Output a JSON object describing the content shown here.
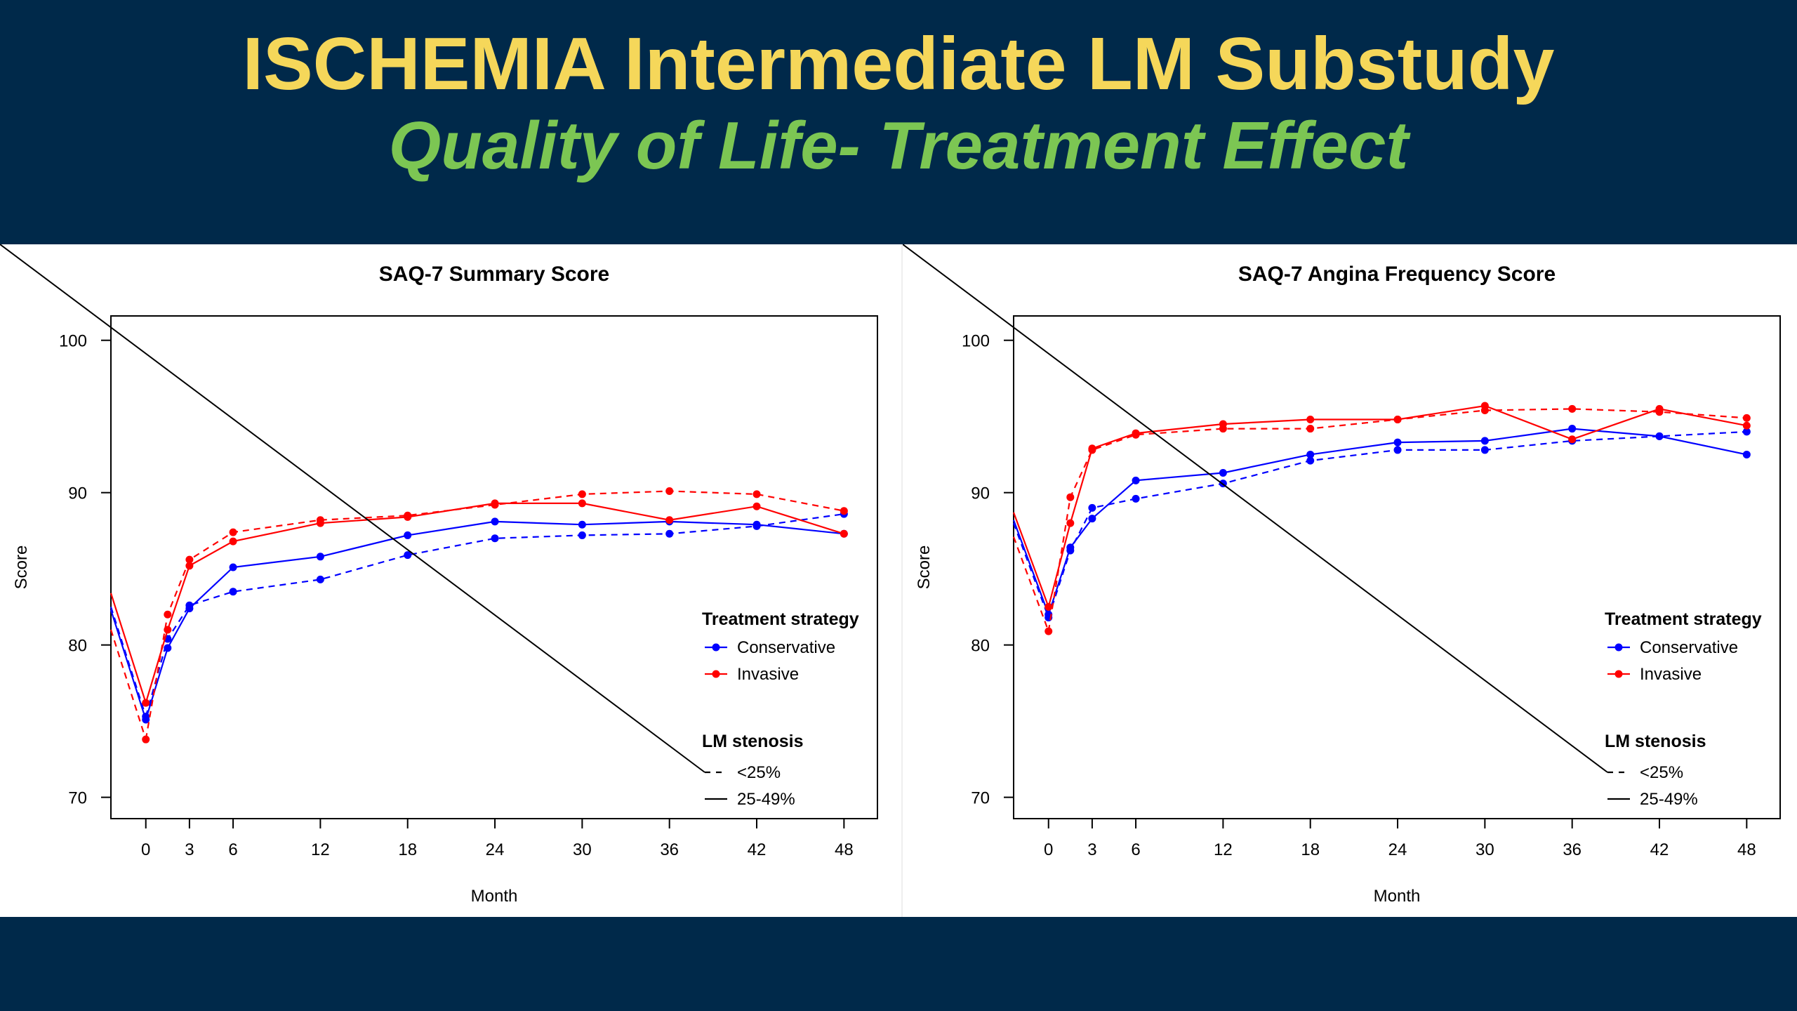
{
  "header": {
    "title": "ISCHEMIA Intermediate LM Substudy",
    "subtitle": "Quality of Life- Treatment Effect"
  },
  "colors": {
    "background": "#00294a",
    "title": "#f5d75a",
    "subtitle": "#7cc653",
    "conservative": "#0000ff",
    "invasive": "#ff0000"
  },
  "chart_data": [
    {
      "type": "line",
      "title": "SAQ-7 Summary Score",
      "xlabel": "Month",
      "ylabel": "Score",
      "xticks": [
        0,
        3,
        6,
        12,
        18,
        24,
        30,
        36,
        42,
        48
      ],
      "yticks": [
        70,
        80,
        90,
        100
      ],
      "xlim": [
        -2.4,
        50.3
      ],
      "ylim": [
        68.6,
        101.6
      ],
      "grid": false,
      "legend": {
        "position": "bottom-right",
        "strategy_title": "Treatment strategy",
        "strategy_items": [
          "Conservative",
          "Invasive"
        ],
        "stenosis_title": "LM stenosis",
        "stenosis_items": [
          "<25%",
          "25-49%"
        ]
      },
      "series": [
        {
          "group": "Conservative",
          "stenosis": "25-49%",
          "dash": false,
          "x": [
            0,
            1.5,
            3,
            6,
            12,
            18,
            24,
            30,
            36,
            42,
            48
          ],
          "y": [
            75.1,
            79.8,
            82.4,
            85.1,
            85.8,
            87.2,
            88.1,
            87.9,
            88.1,
            87.9,
            87.3
          ]
        },
        {
          "group": "Conservative",
          "stenosis": "<25%",
          "dash": true,
          "x": [
            0,
            1.5,
            3,
            6,
            12,
            18,
            24,
            30,
            36,
            42,
            48
          ],
          "y": [
            75.3,
            80.4,
            82.6,
            83.5,
            84.3,
            85.9,
            87.0,
            87.2,
            87.3,
            87.8,
            88.6
          ]
        },
        {
          "group": "Invasive",
          "stenosis": "25-49%",
          "dash": false,
          "x": [
            0,
            1.5,
            3,
            6,
            12,
            18,
            24,
            30,
            36,
            42,
            48
          ],
          "y": [
            76.2,
            81.0,
            85.2,
            86.8,
            88.0,
            88.4,
            89.3,
            89.3,
            88.2,
            89.1,
            87.3
          ]
        },
        {
          "group": "Invasive",
          "stenosis": "<25%",
          "dash": true,
          "x": [
            0,
            1.5,
            3,
            6,
            12,
            18,
            24,
            30,
            36,
            42,
            48
          ],
          "y": [
            73.8,
            82.0,
            85.6,
            87.4,
            88.2,
            88.5,
            89.2,
            89.9,
            90.1,
            89.9,
            88.8
          ]
        }
      ]
    },
    {
      "type": "line",
      "title": "SAQ-7 Angina Frequency Score",
      "xlabel": "Month",
      "ylabel": "Score",
      "xticks": [
        0,
        3,
        6,
        12,
        18,
        24,
        30,
        36,
        42,
        48
      ],
      "yticks": [
        70,
        80,
        90,
        100
      ],
      "xlim": [
        -2.4,
        50.3
      ],
      "ylim": [
        68.6,
        101.6
      ],
      "grid": false,
      "legend": {
        "position": "bottom-right",
        "strategy_title": "Treatment strategy",
        "strategy_items": [
          "Conservative",
          "Invasive"
        ],
        "stenosis_title": "LM stenosis",
        "stenosis_items": [
          "<25%",
          "25-49%"
        ]
      },
      "series": [
        {
          "group": "Conservative",
          "stenosis": "25-49%",
          "dash": false,
          "x": [
            0,
            1.5,
            3,
            6,
            12,
            18,
            24,
            30,
            36,
            42,
            48
          ],
          "y": [
            82.0,
            86.4,
            88.3,
            90.8,
            91.3,
            92.5,
            93.3,
            93.4,
            94.2,
            93.7,
            92.5
          ]
        },
        {
          "group": "Conservative",
          "stenosis": "<25%",
          "dash": true,
          "x": [
            0,
            1.5,
            3,
            6,
            12,
            18,
            24,
            30,
            36,
            42,
            48
          ],
          "y": [
            81.8,
            86.2,
            89.0,
            89.6,
            90.6,
            92.1,
            92.8,
            92.8,
            93.4,
            93.7,
            94.0
          ]
        },
        {
          "group": "Invasive",
          "stenosis": "25-49%",
          "dash": false,
          "x": [
            0,
            1.5,
            3,
            6,
            12,
            18,
            24,
            30,
            36,
            42,
            48
          ],
          "y": [
            82.5,
            88.0,
            92.9,
            93.9,
            94.5,
            94.8,
            94.8,
            95.7,
            93.5,
            95.5,
            94.4
          ]
        },
        {
          "group": "Invasive",
          "stenosis": "<25%",
          "dash": true,
          "x": [
            0,
            1.5,
            3,
            6,
            12,
            18,
            24,
            30,
            36,
            42,
            48
          ],
          "y": [
            80.9,
            89.7,
            92.8,
            93.8,
            94.2,
            94.2,
            94.8,
            95.4,
            95.5,
            95.3,
            94.9
          ]
        }
      ]
    }
  ]
}
